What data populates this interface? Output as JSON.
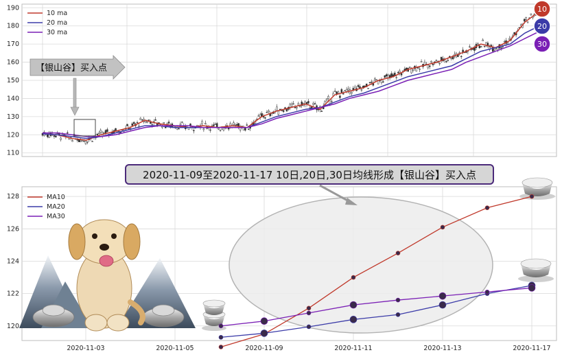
{
  "colors": {
    "ma10": "#c0392b",
    "ma20": "#3b3ba8",
    "ma30": "#7a1fb5",
    "grid": "#d9d9d9",
    "candle": "#333333"
  },
  "top_chart": {
    "annotation": "【银山谷】买入点",
    "badges": [
      "10",
      "20",
      "30"
    ],
    "legend": [
      "10 ma",
      "20 ma",
      "30 ma"
    ],
    "y_ticks": [
      110,
      120,
      130,
      140,
      150,
      160,
      170,
      180,
      190
    ]
  },
  "bottom_chart": {
    "title": "2020-11-09至2020-11-17 10日,20日,30日均线形成【银山谷】买入点",
    "legend": [
      "MA10",
      "MA20",
      "MA30"
    ],
    "y_ticks": [
      120,
      122,
      124,
      126,
      128
    ],
    "x_ticks": [
      "2020-11-03",
      "2020-11-05",
      "2020-11-09",
      "2020-11-11",
      "2020-11-13",
      "2020-11-17"
    ]
  },
  "chart_data": [
    {
      "type": "line",
      "title": "",
      "legend_placement": "top-left",
      "ylim": [
        108,
        192
      ],
      "x_count": 300,
      "series": [
        {
          "name": "10 ma",
          "values": [
            120.5,
            120,
            118,
            117,
            120,
            122,
            124,
            128,
            126,
            125,
            124,
            125,
            124,
            125,
            124,
            130,
            133,
            135,
            137,
            134,
            142,
            144,
            146,
            150,
            152,
            156,
            158,
            160,
            163,
            166,
            170,
            168,
            172,
            182,
            188
          ]
        },
        {
          "name": "20 ma",
          "values": [
            120.5,
            120,
            119,
            118,
            119,
            121,
            123,
            125,
            125,
            124,
            124,
            124,
            124,
            124,
            124,
            127,
            130,
            132,
            134,
            135,
            138,
            141,
            143,
            146,
            149,
            152,
            154,
            156,
            158,
            162,
            166,
            168,
            170,
            176,
            180
          ]
        },
        {
          "name": "30 ma",
          "values": [
            121,
            121,
            120,
            119,
            119,
            120,
            122,
            124,
            125,
            125,
            125,
            124,
            124,
            124,
            124,
            126,
            129,
            131,
            133,
            135,
            137,
            140,
            142,
            144,
            147,
            150,
            152,
            154,
            156,
            160,
            163,
            166,
            169,
            173,
            177
          ]
        }
      ]
    },
    {
      "type": "line",
      "title": "2020-11-09至2020-11-17 10日,20日,30日均线形成【银山谷】买入点",
      "legend_placement": "top-left",
      "ylim": [
        119.1,
        128.6
      ],
      "x": [
        "2020-11-03",
        "2020-11-05",
        "2020-11-06",
        "2020-11-09",
        "2020-11-10",
        "2020-11-11",
        "2020-11-12",
        "2020-11-13",
        "2020-11-16",
        "2020-11-17"
      ],
      "series": [
        {
          "name": "MA10",
          "values": [
            null,
            null,
            118.7,
            119.5,
            121.1,
            123.0,
            124.5,
            126.1,
            127.3,
            128.0
          ]
        },
        {
          "name": "MA20",
          "values": [
            null,
            null,
            119.3,
            119.55,
            119.95,
            120.4,
            120.7,
            121.3,
            122.0,
            122.5
          ]
        },
        {
          "name": "MA30",
          "values": [
            null,
            null,
            120.0,
            120.3,
            120.8,
            121.3,
            121.6,
            121.85,
            122.1,
            122.35
          ]
        }
      ]
    }
  ]
}
